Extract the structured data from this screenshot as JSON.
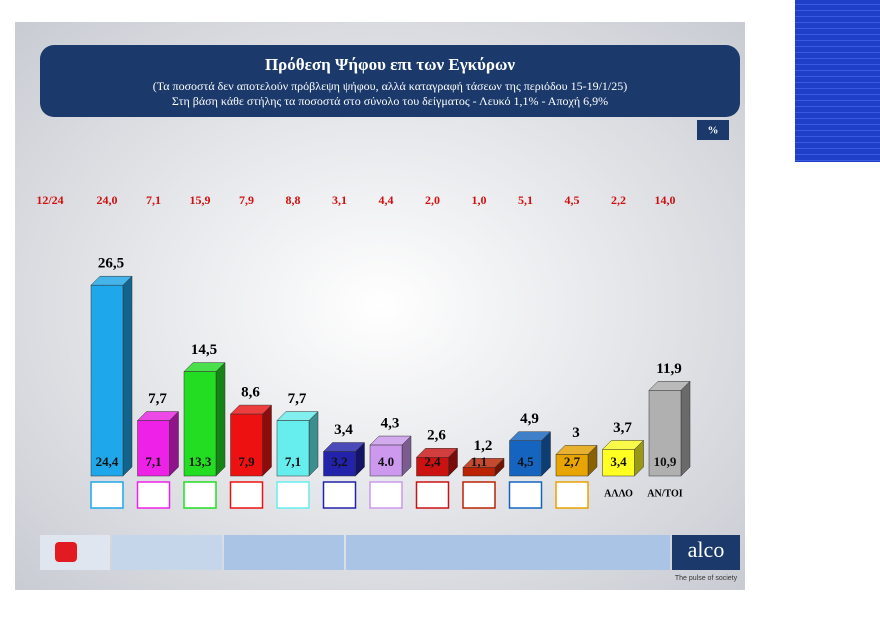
{
  "chart_data": {
    "type": "bar3d",
    "title": "Πρόθεση Ψήφου επι των Εγκύρων",
    "subtitle": [
      "(Τα ποσοστά δεν αποτελούν πρόβλεψη ψήφου, αλλά καταγραφή τάσεων της περιόδου  15-19/1/25)",
      "Στη βάση κάθε στήλης τα ποσοστά στο σύνολο του δείγματος - Λευκό 1,1% - Αποχή 6,9%"
    ],
    "unit": "%",
    "categories": [
      null,
      null,
      null,
      null,
      null,
      null,
      null,
      null,
      null,
      null,
      null,
      "ΑΛΛΟ",
      "ΑΝ/ΤΟΙ"
    ],
    "colors": [
      "#1ea7ea",
      "#ee22e6",
      "#22dd22",
      "#ee1111",
      "#66eeee",
      "#2222aa",
      "#cc99ee",
      "#cc1111",
      "#bb2200",
      "#1565c0",
      "#e8a400",
      "#ffff22",
      "#b0b0b0"
    ],
    "values": [
      26.5,
      7.7,
      14.5,
      8.6,
      7.7,
      3.4,
      4.3,
      2.6,
      1.2,
      4.9,
      3,
      3.7,
      11.9
    ],
    "value_labels": [
      "26,5",
      "7,7",
      "14,5",
      "8,6",
      "7,7",
      "3,4",
      "4,3",
      "2,6",
      "1,2",
      "4,9",
      "3",
      "3,7",
      "11,9"
    ],
    "inner_values": [
      24.4,
      7.1,
      13.3,
      7.9,
      7.1,
      3.2,
      4.0,
      2.4,
      1.1,
      4.5,
      2.7,
      3.4,
      10.9
    ],
    "inner_value_labels": [
      "24,4",
      "7,1",
      "13,3",
      "7,9",
      "7,1",
      "3,2",
      "4.0",
      "2,4",
      "1,1",
      "4,5",
      "2,7",
      "3,4",
      "10,9"
    ],
    "previous": {
      "label": "12/24",
      "values": [
        24.0,
        7.1,
        15.9,
        7.9,
        8.8,
        3.1,
        4.4,
        2.0,
        1.0,
        5.1,
        4.5,
        2.2,
        14.0
      ],
      "value_labels": [
        "24,0",
        "7,1",
        "15,9",
        "7,9",
        "8,8",
        "3,1",
        "4,4",
        "2,0",
        "1,0",
        "5,1",
        "4,5",
        "2,2",
        "14,0"
      ]
    }
  },
  "footer": {
    "brand": "alco",
    "tagline": "The pulse of society"
  }
}
